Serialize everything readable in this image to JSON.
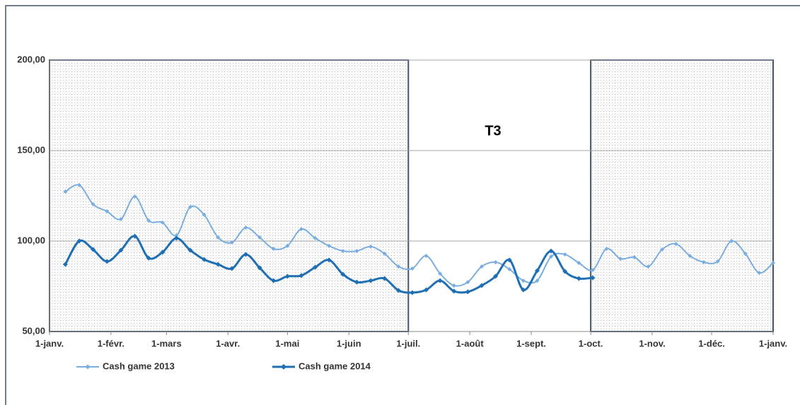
{
  "chart_data": {
    "type": "line",
    "annotation": "T3",
    "x": [
      8,
      15,
      22,
      29,
      36,
      43,
      50,
      57,
      64,
      71,
      78,
      85,
      92,
      99,
      106,
      113,
      120,
      127,
      134,
      141,
      148,
      155,
      162,
      169,
      176,
      183,
      190,
      197,
      204,
      211,
      218,
      225,
      232,
      239,
      246,
      253,
      260,
      267,
      274,
      281,
      288,
      295,
      302,
      309,
      316,
      323,
      330,
      337,
      344,
      351,
      358,
      365
    ],
    "series": [
      {
        "name": "Cash game 2013",
        "color": "#7aaee0",
        "values": [
          127.3,
          130.9,
          120.3,
          116.4,
          112.1,
          124.6,
          111.3,
          110.2,
          103.1,
          118.8,
          114.5,
          102.0,
          99.2,
          107.4,
          102.0,
          95.7,
          97.3,
          106.6,
          101.6,
          97.3,
          94.5,
          94.5,
          96.9,
          93.0,
          85.9,
          84.8,
          91.8,
          82.0,
          75.4,
          77.3,
          85.9,
          88.3,
          84.4,
          78.1,
          78.1,
          91.4,
          92.6,
          87.9,
          84.0,
          95.7,
          90.2,
          91.0,
          85.9,
          95.3,
          98.4,
          91.8,
          88.3,
          88.7,
          100.0,
          93.0,
          82.4,
          87.9
        ]
      },
      {
        "name": "Cash game 2014",
        "color": "#1f6fb5",
        "values": [
          87.1,
          100.0,
          95.3,
          88.7,
          94.9,
          102.7,
          90.6,
          93.8,
          101.6,
          94.9,
          89.8,
          87.1,
          84.8,
          92.6,
          85.2,
          78.1,
          80.5,
          80.9,
          85.5,
          89.5,
          81.6,
          77.3,
          78.1,
          79.3,
          72.7,
          71.5,
          73.0,
          78.1,
          72.3,
          71.9,
          75.4,
          80.5,
          89.5,
          73.0,
          83.6,
          94.5,
          83.2,
          79.3,
          79.7,
          null,
          null,
          null,
          null,
          null,
          null,
          null,
          null,
          null,
          null,
          null,
          null,
          null
        ]
      }
    ],
    "xlim": [
      0,
      365
    ],
    "xticks": [
      {
        "value": 0,
        "label": "1-janv."
      },
      {
        "value": 31,
        "label": "1-févr."
      },
      {
        "value": 59,
        "label": "1-mars"
      },
      {
        "value": 90,
        "label": "1-avr."
      },
      {
        "value": 120,
        "label": "1-mai"
      },
      {
        "value": 151,
        "label": "1-juin"
      },
      {
        "value": 181,
        "label": "1-juil."
      },
      {
        "value": 212,
        "label": "1-août"
      },
      {
        "value": 243,
        "label": "1-sept."
      },
      {
        "value": 273,
        "label": "1-oct."
      },
      {
        "value": 304,
        "label": "1-nov."
      },
      {
        "value": 334,
        "label": "1-déc."
      },
      {
        "value": 365,
        "label": "1-janv."
      }
    ],
    "ylim": [
      50,
      200
    ],
    "yticks": [
      {
        "value": 50,
        "label": "50,00"
      },
      {
        "value": 100,
        "label": "100,00"
      },
      {
        "value": 150,
        "label": "150,00"
      },
      {
        "value": 200,
        "label": "200,00"
      }
    ],
    "shaded_ranges": [
      [
        0,
        181
      ],
      [
        273,
        365
      ]
    ],
    "grid": true
  }
}
